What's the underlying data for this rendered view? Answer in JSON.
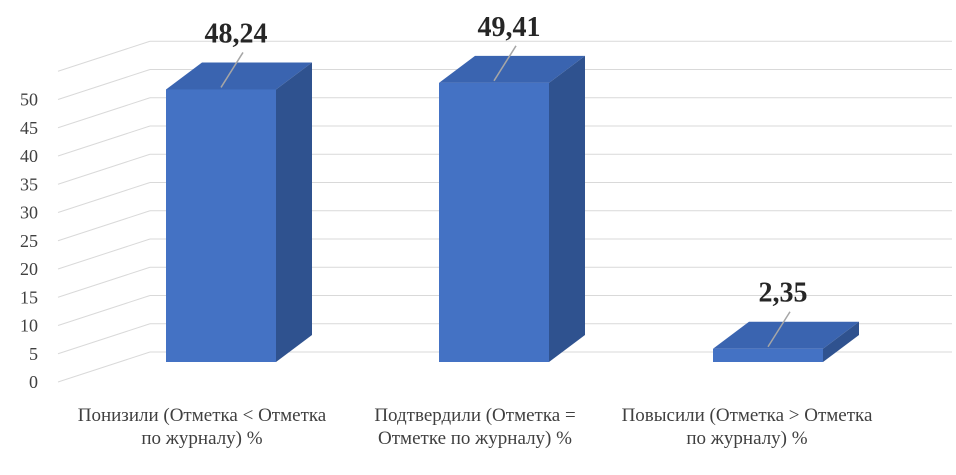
{
  "chart_data": {
    "type": "bar",
    "style": "3d-column",
    "categories": [
      "Понизили (Отметка < Отметка по журналу) %",
      "Подтвердили (Отметка = Отметке по журналу) %",
      "Повысили (Отметка > Отметка по журналу) %"
    ],
    "values": [
      48.24,
      49.41,
      2.35
    ],
    "data_labels": [
      "48,24",
      "49,41",
      "2,35"
    ],
    "ylim": [
      0,
      50
    ],
    "yticks": [
      0,
      5,
      10,
      15,
      20,
      25,
      30,
      35,
      40,
      45,
      50
    ],
    "grid": true,
    "legend": "none",
    "colors": {
      "front": "#4472C4",
      "side": "#2F528F",
      "top": "#3A64B0",
      "grid": "#D9D9D9",
      "leader": "#A6A6A6"
    }
  }
}
